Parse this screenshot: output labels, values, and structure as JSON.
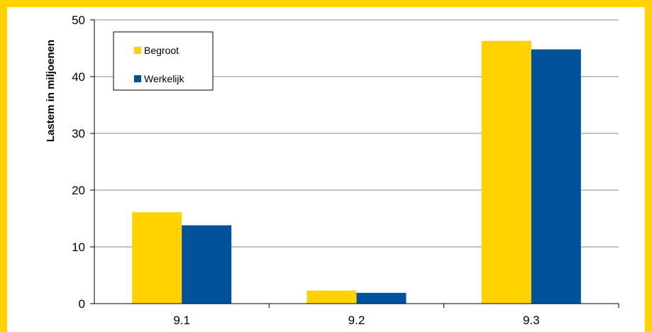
{
  "chart_data": {
    "type": "bar",
    "categories": [
      "9.1",
      "9.2",
      "9.3"
    ],
    "series": [
      {
        "name": "Begroot",
        "values": [
          16.1,
          2.3,
          46.3
        ],
        "color": "#FFD200"
      },
      {
        "name": "Werkelijk",
        "values": [
          13.8,
          1.9,
          44.8
        ],
        "color": "#00539B"
      }
    ],
    "ylabel": "Lastem in miljoenen",
    "ylim": [
      0,
      50
    ],
    "yticks": [
      "0",
      "10",
      "20",
      "30",
      "40",
      "50"
    ],
    "grid": true,
    "legend": "top-left"
  },
  "colors": {
    "frame": "#FFD200",
    "gridline": "#888888"
  }
}
